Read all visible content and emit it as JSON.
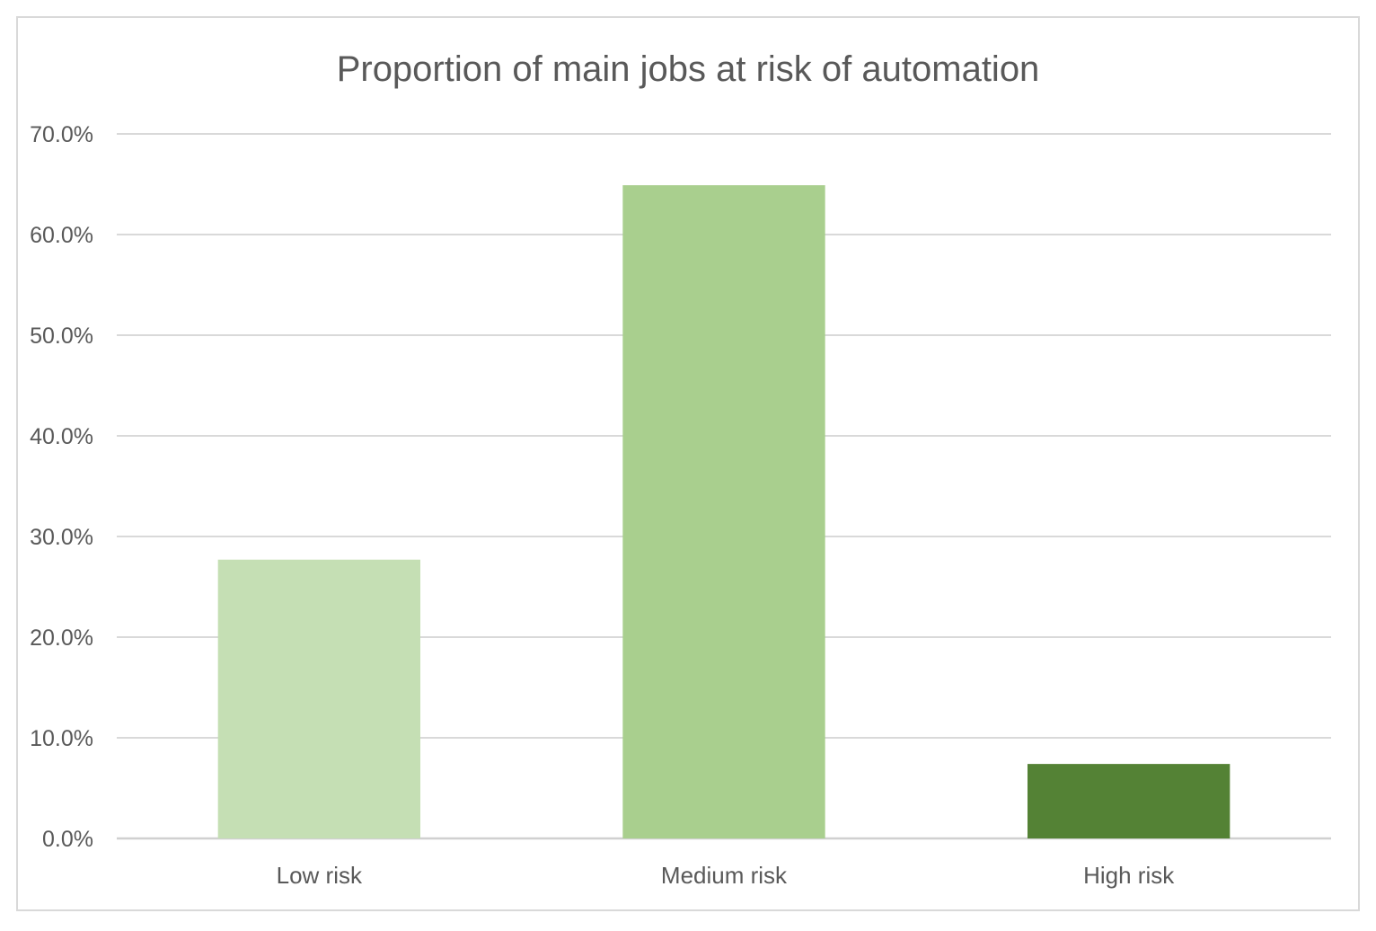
{
  "chart_data": {
    "type": "bar",
    "title": "Proportion of main jobs at risk of automation",
    "xlabel": "",
    "ylabel": "",
    "categories": [
      "Low risk",
      "Medium risk",
      "High risk"
    ],
    "values": [
      27.7,
      64.9,
      7.4
    ],
    "colors": [
      "#c5dfb4",
      "#a9cf8e",
      "#548235"
    ],
    "ylim": [
      0,
      70
    ],
    "yticks": [
      "0.0%",
      "10.0%",
      "20.0%",
      "30.0%",
      "40.0%",
      "50.0%",
      "60.0%",
      "70.0%"
    ],
    "grid": true,
    "legend": "none"
  }
}
